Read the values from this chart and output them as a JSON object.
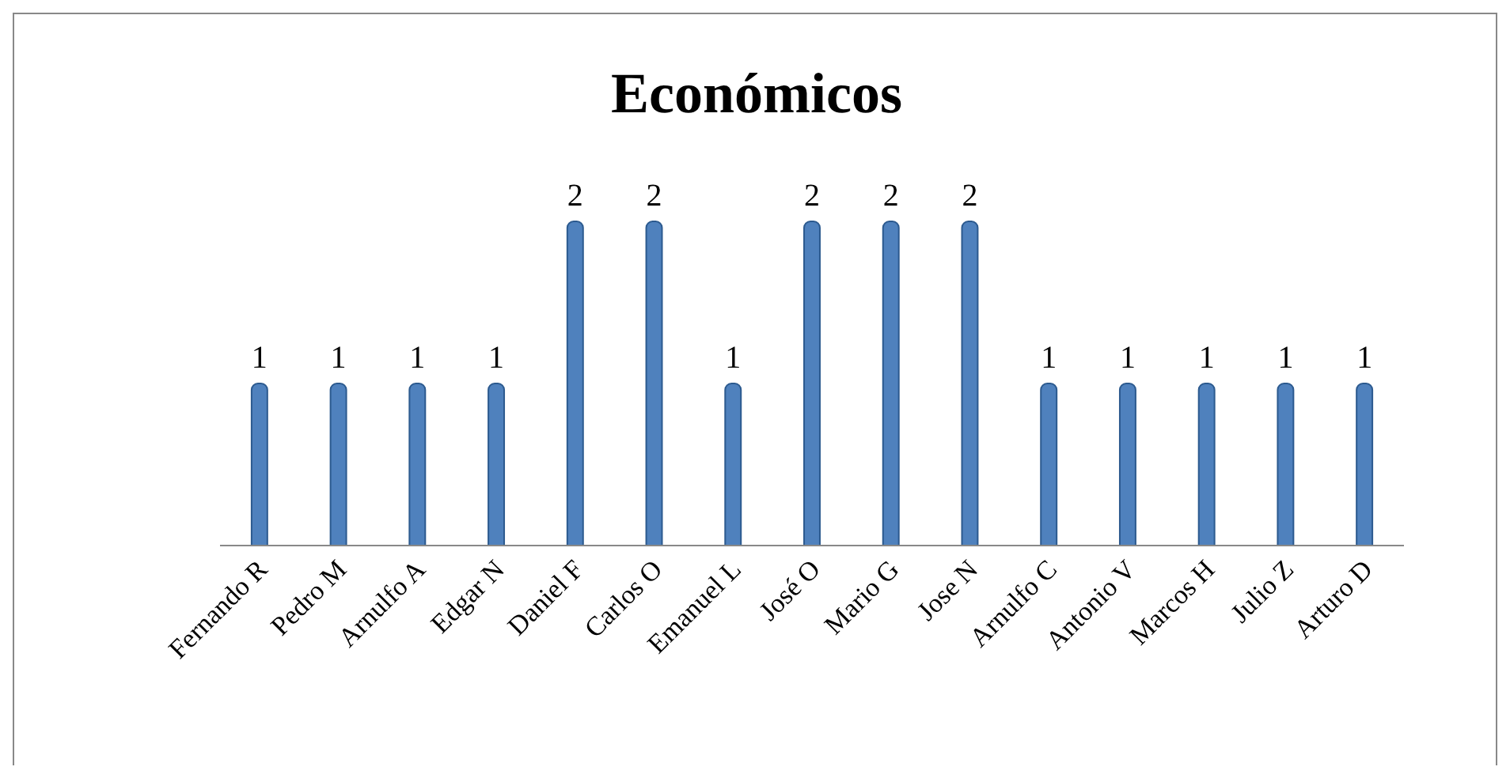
{
  "chart_data": {
    "type": "bar",
    "title": "Económicos",
    "categories": [
      "Fernando R",
      "Pedro M",
      "Arnulfo A",
      "Edgar N",
      "Daniel F",
      "Carlos O",
      "Emanuel L",
      "José O",
      "Mario G",
      "Jose N",
      "Arnulfo C",
      "Antonio V",
      "Marcos H",
      "Julio Z",
      "Arturo D"
    ],
    "values": [
      1,
      1,
      1,
      1,
      2,
      2,
      1,
      2,
      2,
      2,
      1,
      1,
      1,
      1,
      1
    ],
    "color": "#4f81bd",
    "data_labels": true
  }
}
